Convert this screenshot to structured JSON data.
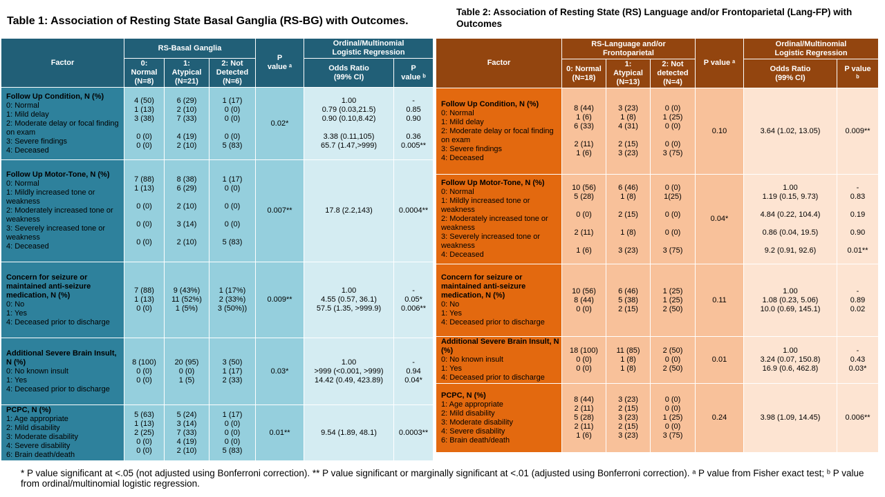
{
  "table1": {
    "title": "Table 1: Association of Resting State Basal Ganglia (RS-BG) with Outcomes.",
    "header": {
      "factor": "Factor",
      "group": "RS-Basal Ganglia",
      "p_value": "P\nvalue ᵃ",
      "regression": "Ordinal/Multinomial\nLogistic Regression",
      "sub": [
        "0:\nNormal\n(N=8)",
        "1:\nAtypical\n(N=21)",
        "2: Not\nDetected\n(N=6)",
        "Odds Ratio\n(99% CI)",
        "P\nvalue ᵇ"
      ]
    },
    "rows": [
      {
        "factor": "Follow Up Condition, N (%)",
        "items": "0: Normal\n1: Mild delay\n2: Moderate delay or focal finding on exam\n3: Severe findings\n4: Deceased",
        "cells": [
          "4 (50)\n1 (13)\n3 (38)\n\n0 (0)\n0 (0)",
          "6 (29)\n2 (10)\n7 (33)\n\n4 (19)\n2 (10)",
          "1 (17)\n0 (0)\n0 (0)\n\n0 (0)\n5 (83)",
          "0.02*",
          "1.00\n0.79 (0.03,21.5)\n0.90 (0.10,8.42)\n\n3.38 (0.11,105)\n65.7 (1.47,>999)",
          "-\n0.85\n0.90\n\n0.36\n0.005**"
        ]
      },
      {
        "factor": "Follow Up Motor-Tone, N (%)",
        "items": "0: Normal\n1: Mildly increased tone or weakness\n2: Moderately increased tone or weakness\n3: Severely increased tone or weakness\n4: Deceased",
        "cells": [
          "7 (88)\n1 (13)\n\n0 (0)\n\n0 (0)\n\n0 (0)",
          "8 (38)\n6 (29)\n\n2 (10)\n\n3 (14)\n\n2 (10)",
          "1 (17)\n0 (0)\n\n0 (0)\n\n0 (0)\n\n5 (83)",
          "0.007**",
          "17.8 (2.2,143)",
          "0.0004**"
        ]
      },
      {
        "factor": "Concern for seizure or maintained anti-seizure medication, N (%)",
        "items": "0: No\n1: Yes\n4: Deceased prior to discharge",
        "cells": [
          "7 (88)\n1 (13)\n0 (0)",
          "9 (43%)\n11 (52%)\n1 (5%)",
          "1 (17%)\n2 (33%)\n3 (50%))",
          "0.009**",
          "1.00\n4.55 (0.57, 36.1)\n57.5 (1.35, >999.9)",
          "-\n0.05*\n0.006**"
        ]
      },
      {
        "factor": "Additional Severe Brain Insult, N (%)",
        "items": "0: No known insult\n1: Yes\n4: Deceased prior to discharge",
        "cells": [
          "8 (100)\n0 (0)\n0 (0)",
          "20 (95)\n0 (0)\n1 (5)",
          "3 (50)\n1 (17)\n2 (33)",
          "0.03*",
          "1.00\n>999 (<0.001, >999)\n14.42 (0.49, 423.89)",
          "-\n0.94\n0.04*"
        ]
      },
      {
        "factor": "PCPC, N (%)",
        "items": "1: Age appropriate\n2: Mild disability\n3: Moderate disability\n4: Severe disability\n6: Brain death/death",
        "cells": [
          "5 (63)\n1 (13)\n2 (25)\n0 (0)\n0 (0)",
          "5 (24)\n3 (14)\n7 (33)\n4 (19)\n2 (10)",
          "1 (17)\n0 (0)\n0 (0)\n0 (0)\n5 (83)",
          "0.01**",
          "9.54 (1.89, 48.1)",
          "0.0003**"
        ]
      }
    ]
  },
  "table2": {
    "title": "Table 2: Association of Resting State (RS) Language and/or Frontoparietal (Lang-FP) with Outcomes",
    "header": {
      "factor": "Factor",
      "group": "RS-Language and/or\nFrontoparietal",
      "p_value": "P value ᵃ",
      "regression": "Ordinal/Multinomial\nLogistic Regression",
      "sub": [
        "0: Normal\n(N=18)",
        "1:\nAtypical\n(N=13)",
        "2: Not\ndetected\n(N=4)",
        "Odds Ratio\n(99% CI)",
        "P value\nᵇ"
      ]
    },
    "rows": [
      {
        "factor": "Follow Up Condition, N (%)",
        "items": "0: Normal\n1: Mild delay\n2: Moderate delay or focal finding on exam\n3: Severe findings\n4: Deceased",
        "cells": [
          "8 (44)\n1 (6)\n6 (33)\n\n2 (11)\n1 (6)",
          "3 (23)\n1 (8)\n4 (31)\n\n2 (15)\n3 (23)",
          "0 (0)\n1 (25)\n0 (0)\n\n0 (0)\n3 (75)",
          "0.10",
          "3.64 (1.02, 13.05)",
          "0.009**"
        ]
      },
      {
        "factor": "Follow Up Motor-Tone, N (%)",
        "items": "0: Normal\n1: Mildly increased tone or weakness\n2: Moderately increased tone or weakness\n3: Severely increased tone or weakness\n4: Deceased",
        "cells": [
          "10 (56)\n5 (28)\n\n0 (0)\n\n2 (11)\n\n1 (6)",
          "6 (46)\n1 (8)\n\n2 (15)\n\n1 (8)\n\n3 (23)",
          "0 (0)\n1(25)\n\n0 (0)\n\n0 (0)\n\n3 (75)",
          "0.04*",
          "1.00\n1.19 (0.15, 9.73)\n\n4.84 (0.22, 104.4)\n\n0.86 (0.04, 19.5)\n\n9.2 (0.91, 92.6)",
          "-\n0.83\n\n0.19\n\n0.90\n\n0.01**"
        ]
      },
      {
        "factor": "Concern for seizure or maintained anti-seizure medication, N (%)",
        "items": "0: No\n1: Yes\n4: Deceased prior to discharge",
        "cells": [
          "10 (56)\n8 (44)\n0 (0)",
          "6 (46)\n5 (38)\n2 (15)",
          "1 (25)\n1 (25)\n2 (50)",
          "0.11",
          "1.00\n1.08 (0.23, 5.06)\n10.0 (0.69, 145.1)",
          "-\n0.89\n0.02"
        ]
      },
      {
        "factor": "Additional Severe Brain Insult, N (%)",
        "items": "0: No known insult\n1: Yes\n4: Deceased prior to discharge",
        "cells": [
          "18 (100)\n0 (0)\n0 (0)",
          "11 (85)\n1 (8)\n1 (8)",
          "2 (50)\n0 (0)\n2 (50)",
          "0.01",
          "1.00\n3.24 (0.07, 150.8)\n16.9 (0.6, 462.8)",
          "-\n0.43\n0.03*"
        ]
      },
      {
        "factor": "PCPC, N (%)",
        "items": "1: Age appropriate\n2: Mild disability\n3: Moderate disability\n4: Severe disability\n6: Brain death/death",
        "cells": [
          "8 (44)\n2 (11)\n5 (28)\n2 (11)\n1 (6)",
          "3 (23)\n2 (15)\n3 (23)\n2 (15)\n3 (23)",
          "0 (0)\n0 (0)\n1 (25)\n0 (0)\n3 (75)",
          "0.24",
          "3.98 (1.09, 14.45)",
          "0.006**"
        ]
      }
    ]
  },
  "footnote": "* P value significant at <.05 (not adjusted using Bonferroni correction). ** P value significant or marginally significant at <.01 (adjusted using Bonferroni correction). ᵃ P value from Fisher exact test; ᵇ P value from ordinal/multinomial logistic regression."
}
